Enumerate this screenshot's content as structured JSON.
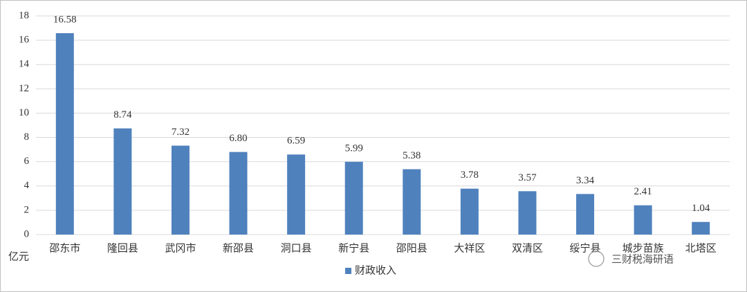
{
  "chart_data": {
    "type": "bar",
    "y_label": "亿元",
    "categories": [
      "邵东市",
      "隆回县",
      "武冈市",
      "新邵县",
      "洞口县",
      "新宁县",
      "邵阳县",
      "大祥区",
      "双清区",
      "绥宁县",
      "城步苗族",
      "北塔区"
    ],
    "series": [
      {
        "name": "财政收入",
        "color": "#4f81bd",
        "values": [
          16.58,
          8.74,
          7.32,
          6.8,
          6.59,
          5.99,
          5.38,
          3.78,
          3.57,
          3.34,
          2.41,
          1.04
        ],
        "value_labels": [
          "16.58",
          "8.74",
          "7.32",
          "6.80",
          "6.59",
          "5.99",
          "5.38",
          "3.78",
          "3.57",
          "3.34",
          "2.41",
          "1.04"
        ]
      }
    ],
    "ylim": [
      0,
      18
    ],
    "yticks": [
      0,
      2,
      4,
      6,
      8,
      10,
      12,
      14,
      16,
      18
    ],
    "grid": true,
    "legend": "bottom",
    "watermark": "三财税海研语"
  }
}
